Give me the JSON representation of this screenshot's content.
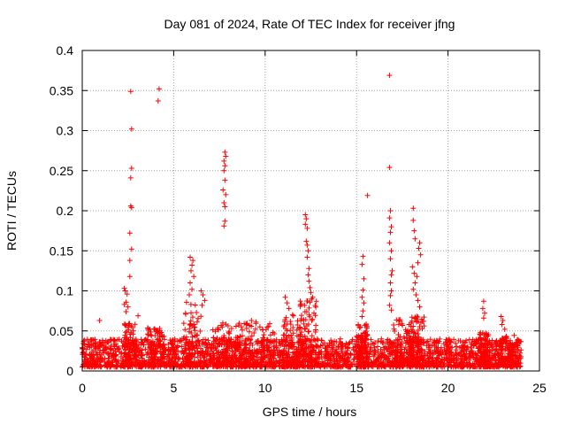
{
  "chart_data": {
    "type": "scatter",
    "title": "Day 081 of 2024, Rate Of TEC Index for receiver jfng",
    "xlabel": "GPS time / hours",
    "ylabel": "ROTI / TECUs",
    "xlim": [
      0,
      25
    ],
    "ylim": [
      0,
      0.4
    ],
    "xticks": [
      0,
      5,
      10,
      15,
      20,
      25
    ],
    "yticks": [
      0,
      0.05,
      0.1,
      0.15,
      0.2,
      0.25,
      0.3,
      0.35,
      0.4
    ],
    "xtick_labels": [
      "0",
      "5",
      "10",
      "15",
      "20",
      "25"
    ],
    "ytick_labels": [
      "0",
      "0.05",
      "0.1",
      "0.15",
      "0.2",
      "0.25",
      "0.3",
      "0.35",
      "0.4"
    ],
    "grid": true,
    "marker": "+",
    "color": "#ff0000",
    "baseline": {
      "x_range": [
        0,
        24
      ],
      "typical_range": [
        0.005,
        0.04
      ],
      "bursts": [
        {
          "x": 2.6,
          "width": 0.3,
          "peak": 0.06
        },
        {
          "x": 4.0,
          "width": 0.5,
          "peak": 0.055
        },
        {
          "x": 6.0,
          "width": 0.5,
          "peak": 0.09
        },
        {
          "x": 7.9,
          "width": 0.8,
          "peak": 0.06
        },
        {
          "x": 9.5,
          "width": 1.0,
          "peak": 0.06
        },
        {
          "x": 11.5,
          "width": 0.5,
          "peak": 0.07
        },
        {
          "x": 12.3,
          "width": 0.5,
          "peak": 0.09
        },
        {
          "x": 15.3,
          "width": 0.3,
          "peak": 0.06
        },
        {
          "x": 17.4,
          "width": 0.5,
          "peak": 0.065
        },
        {
          "x": 18.3,
          "width": 0.4,
          "peak": 0.07
        },
        {
          "x": 22.0,
          "width": 0.3,
          "peak": 0.05
        },
        {
          "x": 23.2,
          "width": 0.6,
          "peak": 0.045
        }
      ]
    },
    "points": [
      {
        "x": 2.65,
        "y": 0.349
      },
      {
        "x": 2.7,
        "y": 0.302
      },
      {
        "x": 2.7,
        "y": 0.253
      },
      {
        "x": 2.65,
        "y": 0.241
      },
      {
        "x": 2.65,
        "y": 0.206
      },
      {
        "x": 2.7,
        "y": 0.204
      },
      {
        "x": 2.6,
        "y": 0.172
      },
      {
        "x": 2.7,
        "y": 0.152
      },
      {
        "x": 2.6,
        "y": 0.138
      },
      {
        "x": 2.6,
        "y": 0.118
      },
      {
        "x": 2.3,
        "y": 0.103
      },
      {
        "x": 2.35,
        "y": 0.1
      },
      {
        "x": 2.45,
        "y": 0.096
      },
      {
        "x": 2.4,
        "y": 0.086
      },
      {
        "x": 2.3,
        "y": 0.083
      },
      {
        "x": 2.5,
        "y": 0.08
      },
      {
        "x": 2.4,
        "y": 0.074
      },
      {
        "x": 3.05,
        "y": 0.069
      },
      {
        "x": 0.95,
        "y": 0.063
      },
      {
        "x": 4.2,
        "y": 0.352
      },
      {
        "x": 4.15,
        "y": 0.337
      },
      {
        "x": 5.9,
        "y": 0.142
      },
      {
        "x": 6.05,
        "y": 0.138
      },
      {
        "x": 6.0,
        "y": 0.132
      },
      {
        "x": 5.95,
        "y": 0.125
      },
      {
        "x": 6.1,
        "y": 0.118
      },
      {
        "x": 5.9,
        "y": 0.11
      },
      {
        "x": 6.0,
        "y": 0.102
      },
      {
        "x": 5.85,
        "y": 0.095
      },
      {
        "x": 6.5,
        "y": 0.1
      },
      {
        "x": 6.6,
        "y": 0.095
      },
      {
        "x": 6.7,
        "y": 0.088
      },
      {
        "x": 6.55,
        "y": 0.082
      },
      {
        "x": 7.8,
        "y": 0.273
      },
      {
        "x": 7.85,
        "y": 0.268
      },
      {
        "x": 7.75,
        "y": 0.262
      },
      {
        "x": 7.8,
        "y": 0.256
      },
      {
        "x": 7.75,
        "y": 0.25
      },
      {
        "x": 7.8,
        "y": 0.238
      },
      {
        "x": 7.7,
        "y": 0.226
      },
      {
        "x": 7.85,
        "y": 0.22
      },
      {
        "x": 7.75,
        "y": 0.21
      },
      {
        "x": 7.8,
        "y": 0.205
      },
      {
        "x": 7.8,
        "y": 0.187
      },
      {
        "x": 7.75,
        "y": 0.181
      },
      {
        "x": 9.25,
        "y": 0.063
      },
      {
        "x": 9.5,
        "y": 0.061
      },
      {
        "x": 9.0,
        "y": 0.058
      },
      {
        "x": 10.25,
        "y": 0.059
      },
      {
        "x": 11.1,
        "y": 0.092
      },
      {
        "x": 11.2,
        "y": 0.085
      },
      {
        "x": 11.3,
        "y": 0.078
      },
      {
        "x": 11.5,
        "y": 0.07
      },
      {
        "x": 12.2,
        "y": 0.195
      },
      {
        "x": 12.25,
        "y": 0.19
      },
      {
        "x": 12.2,
        "y": 0.183
      },
      {
        "x": 12.3,
        "y": 0.178
      },
      {
        "x": 12.25,
        "y": 0.162
      },
      {
        "x": 12.3,
        "y": 0.157
      },
      {
        "x": 12.35,
        "y": 0.15
      },
      {
        "x": 12.3,
        "y": 0.142
      },
      {
        "x": 12.4,
        "y": 0.128
      },
      {
        "x": 12.35,
        "y": 0.12
      },
      {
        "x": 12.4,
        "y": 0.112
      },
      {
        "x": 12.45,
        "y": 0.104
      },
      {
        "x": 12.5,
        "y": 0.098
      },
      {
        "x": 12.6,
        "y": 0.092
      },
      {
        "x": 12.45,
        "y": 0.086
      },
      {
        "x": 12.15,
        "y": 0.082
      },
      {
        "x": 15.35,
        "y": 0.143
      },
      {
        "x": 15.3,
        "y": 0.133
      },
      {
        "x": 15.4,
        "y": 0.115
      },
      {
        "x": 15.35,
        "y": 0.101
      },
      {
        "x": 15.3,
        "y": 0.092
      },
      {
        "x": 15.4,
        "y": 0.085
      },
      {
        "x": 15.35,
        "y": 0.075
      },
      {
        "x": 15.3,
        "y": 0.068
      },
      {
        "x": 15.6,
        "y": 0.219
      },
      {
        "x": 16.8,
        "y": 0.369
      },
      {
        "x": 16.8,
        "y": 0.254
      },
      {
        "x": 16.85,
        "y": 0.2
      },
      {
        "x": 16.8,
        "y": 0.191
      },
      {
        "x": 16.9,
        "y": 0.18
      },
      {
        "x": 16.85,
        "y": 0.173
      },
      {
        "x": 16.8,
        "y": 0.16
      },
      {
        "x": 16.9,
        "y": 0.15
      },
      {
        "x": 16.85,
        "y": 0.14
      },
      {
        "x": 16.95,
        "y": 0.125
      },
      {
        "x": 16.9,
        "y": 0.12
      },
      {
        "x": 16.85,
        "y": 0.11
      },
      {
        "x": 16.9,
        "y": 0.1
      },
      {
        "x": 16.85,
        "y": 0.094
      },
      {
        "x": 16.8,
        "y": 0.082
      },
      {
        "x": 16.9,
        "y": 0.076
      },
      {
        "x": 18.1,
        "y": 0.203
      },
      {
        "x": 18.1,
        "y": 0.188
      },
      {
        "x": 18.15,
        "y": 0.175
      },
      {
        "x": 18.2,
        "y": 0.165
      },
      {
        "x": 18.45,
        "y": 0.16
      },
      {
        "x": 18.4,
        "y": 0.153
      },
      {
        "x": 18.5,
        "y": 0.145
      },
      {
        "x": 18.35,
        "y": 0.135
      },
      {
        "x": 18.05,
        "y": 0.13
      },
      {
        "x": 18.15,
        "y": 0.122
      },
      {
        "x": 18.3,
        "y": 0.118
      },
      {
        "x": 18.2,
        "y": 0.11
      },
      {
        "x": 18.1,
        "y": 0.102
      },
      {
        "x": 18.25,
        "y": 0.095
      },
      {
        "x": 18.35,
        "y": 0.088
      },
      {
        "x": 18.45,
        "y": 0.08
      },
      {
        "x": 21.95,
        "y": 0.087
      },
      {
        "x": 21.9,
        "y": 0.078
      },
      {
        "x": 22.0,
        "y": 0.072
      },
      {
        "x": 21.95,
        "y": 0.066
      },
      {
        "x": 22.9,
        "y": 0.068
      },
      {
        "x": 23.0,
        "y": 0.063
      },
      {
        "x": 22.95,
        "y": 0.058
      },
      {
        "x": 23.1,
        "y": 0.052
      }
    ]
  }
}
